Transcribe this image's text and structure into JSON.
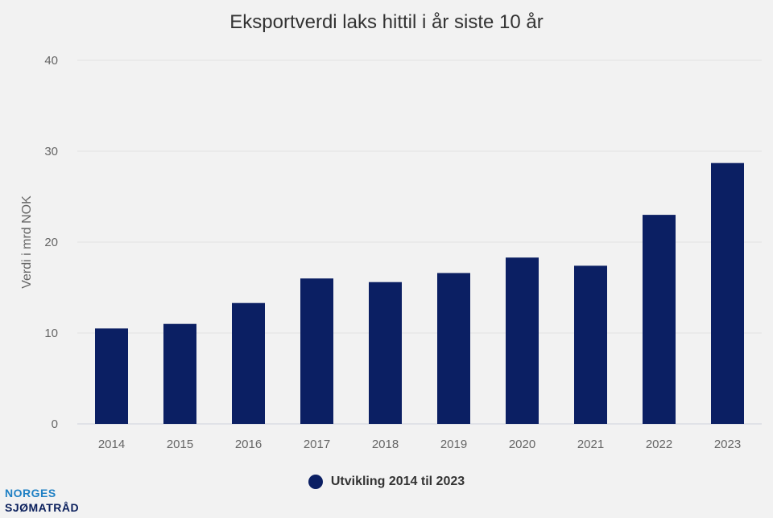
{
  "chart_data": {
    "type": "bar",
    "title": "Eksportverdi laks hittil i år siste 10 år",
    "ylabel": "Verdi i mrd NOK",
    "xlabel": "",
    "categories": [
      "2014",
      "2015",
      "2016",
      "2017",
      "2018",
      "2019",
      "2020",
      "2021",
      "2022",
      "2023"
    ],
    "series": [
      {
        "name": "Utvikling 2014 til 2023",
        "values": [
          10.5,
          11.0,
          13.3,
          16.0,
          15.6,
          16.6,
          18.3,
          17.4,
          23.0,
          28.7
        ]
      }
    ],
    "ylim": [
      0,
      40
    ],
    "yticks": [
      "0",
      "10",
      "20",
      "30",
      "40"
    ],
    "grid": true,
    "legend": "bottom-center"
  },
  "colors": {
    "bar": "#0b1f63",
    "background": "#f2f2f2",
    "grid": "#e2e2e2",
    "axis": "#cfd3dc",
    "text": "#333333",
    "tick_text": "#666666"
  },
  "logo": {
    "line1": "NORGES",
    "line2": "SJØMATRÅD"
  }
}
